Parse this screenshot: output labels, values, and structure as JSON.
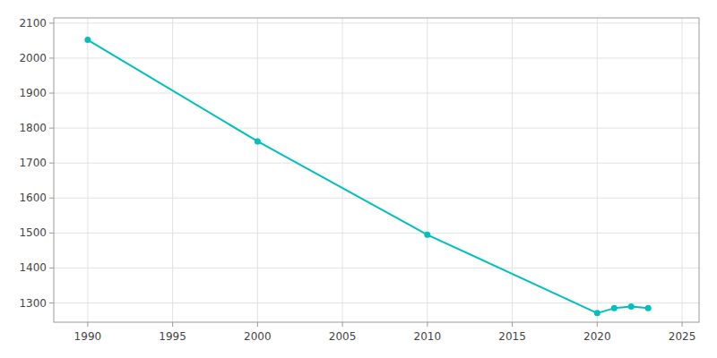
{
  "chart_data": {
    "type": "line",
    "x": [
      1990,
      2000,
      2010,
      2020,
      2021,
      2022,
      2023
    ],
    "values": [
      2052,
      1762,
      1495,
      1271,
      1285,
      1290,
      1285
    ],
    "color": "#00BFBF",
    "marker": "circle",
    "xlim": [
      1988,
      2026
    ],
    "ylim": [
      1245,
      2115
    ],
    "xticks": [
      1990,
      1995,
      2000,
      2005,
      2010,
      2015,
      2020,
      2025
    ],
    "yticks": [
      1300,
      1400,
      1500,
      1600,
      1700,
      1800,
      1900,
      2000,
      2100
    ],
    "grid": true
  }
}
